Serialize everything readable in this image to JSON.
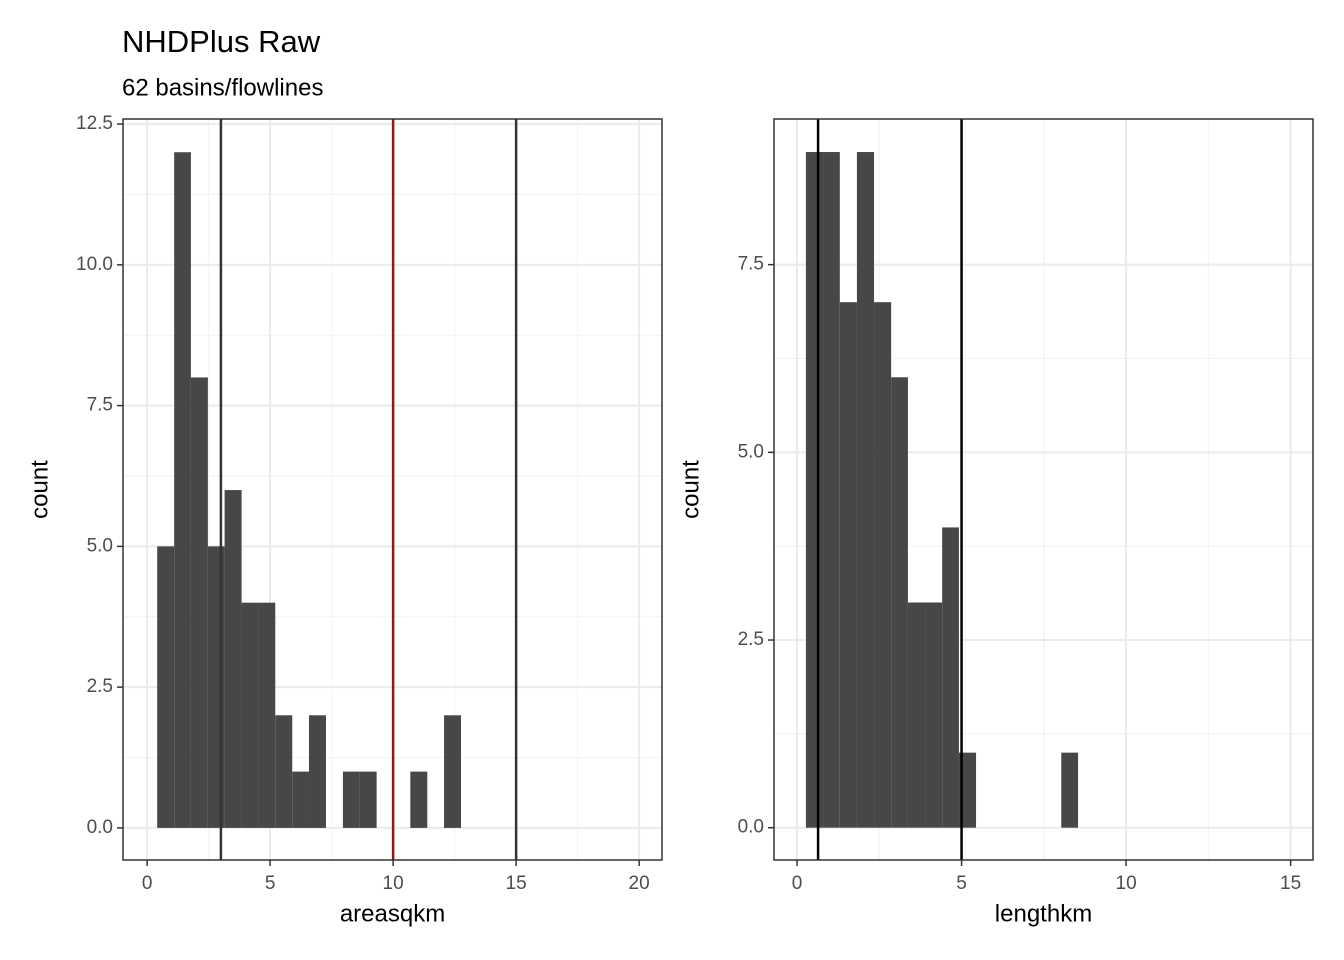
{
  "figure": {
    "title": "NHDPlus Raw",
    "subtitle": "62 basins/flowlines"
  },
  "chart_data": [
    {
      "type": "histogram",
      "xlabel": "areasqkm",
      "ylabel": "count",
      "color": "#474747",
      "bins": [
        0.41,
        1.1,
        1.78,
        2.47,
        3.15,
        3.84,
        4.53,
        5.21,
        5.9,
        6.58,
        7.27,
        7.96,
        8.64,
        9.33,
        10.01,
        10.7,
        11.39,
        12.07,
        12.76
      ],
      "counts": [
        5,
        12,
        8,
        5,
        6,
        4,
        4,
        2,
        1,
        2,
        0,
        1,
        1,
        0,
        0,
        1,
        0,
        2
      ],
      "vlines": [
        {
          "value": 3,
          "color": "#333333"
        },
        {
          "value": 10,
          "color": "#8b1a1a"
        },
        {
          "value": 15,
          "color": "#333333"
        }
      ],
      "xlim": [
        -0.98,
        20.93
      ],
      "ylim": [
        -0.57,
        12.59
      ],
      "xticks": [
        0,
        5,
        10,
        15,
        20
      ],
      "yticks": [
        {
          "value": 0,
          "label": "0.0"
        },
        {
          "value": 2.5,
          "label": "2.5"
        },
        {
          "value": 5,
          "label": "5.0"
        },
        {
          "value": 7.5,
          "label": "7.5"
        },
        {
          "value": 10,
          "label": "10.0"
        },
        {
          "value": 12.5,
          "label": "12.5"
        }
      ],
      "grid": true
    },
    {
      "type": "histogram",
      "xlabel": "lengthkm",
      "ylabel": "count",
      "color": "#474747",
      "bins": [
        0.27,
        0.79,
        1.3,
        1.82,
        2.34,
        2.86,
        3.37,
        3.89,
        4.41,
        4.92,
        5.44,
        5.96,
        6.47,
        6.99,
        7.51,
        8.03,
        8.54
      ],
      "counts": [
        9,
        9,
        7,
        9,
        7,
        6,
        3,
        3,
        4,
        1,
        0,
        0,
        0,
        0,
        0,
        1
      ],
      "vlines": [
        {
          "value": 0.64,
          "color": "#000000"
        },
        {
          "value": 5,
          "color": "#000000"
        }
      ],
      "xlim": [
        -0.7,
        15.68
      ],
      "ylim": [
        -0.43,
        9.44
      ],
      "xticks": [
        0,
        5,
        10,
        15
      ],
      "yticks": [
        {
          "value": 0,
          "label": "0.0"
        },
        {
          "value": 2.5,
          "label": "2.5"
        },
        {
          "value": 5,
          "label": "5.0"
        },
        {
          "value": 7.5,
          "label": "7.5"
        }
      ],
      "grid": true
    }
  ]
}
